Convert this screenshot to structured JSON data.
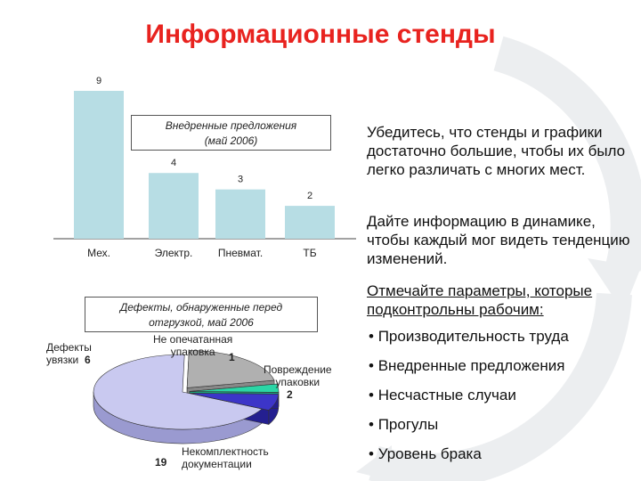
{
  "title": "Информационные стенды",
  "colors": {
    "title": "#e8231f",
    "bar": "#b7dde4",
    "arrows": "#eceef0"
  },
  "chart_data": [
    {
      "type": "bar",
      "title": "Внедренные предложения\n(май 2006)",
      "categories": [
        "Мех.",
        "Электр.",
        "Пневмат.",
        "ТБ"
      ],
      "values": [
        9,
        4,
        3,
        2
      ],
      "ylim": [
        0,
        9
      ],
      "grid": false
    },
    {
      "type": "pie",
      "title": "Дефекты, обнаруженные перед\nотгрузкой, май 2006",
      "labels": [
        "Некомплектность документации",
        "Дефекты увязки",
        "Не опечатанная упаковка",
        "Повреждение упаковки"
      ],
      "values": [
        19,
        6,
        1,
        2
      ],
      "colors": [
        "#c9c9f0",
        "#b0b0b0",
        "#2bd6a6",
        "#3c35c8"
      ]
    }
  ],
  "bar_labels": {
    "cats": [
      "Мех.",
      "Электр.",
      "Пневмат.",
      "ТБ"
    ],
    "vals": [
      "9",
      "4",
      "3",
      "2"
    ]
  },
  "pie_text": {
    "defects": "Дефекты\nувязки",
    "defects_val": "6",
    "unsealed": "Не опечатанная\nупаковка",
    "unsealed_val": "1",
    "damage": "Повреждение\nупаковки",
    "damage_val": "2",
    "incomplete": "Некомплектность\nдокументации",
    "incomplete_val": "19"
  },
  "right": {
    "p1": "Убедитесь, что стенды и графики достаточно большие, чтобы их было легко различать с многих мест.",
    "p2": "Дайте информацию в динамике, чтобы каждый мог видеть тенденцию изменений.",
    "p3": "Отмечайте параметры, которые подконтрольны рабочим:",
    "bullets": [
      "Производительность труда",
      "Внедренные предложения",
      "Несчастные случаи",
      "Прогулы",
      "Уровень брака"
    ]
  }
}
